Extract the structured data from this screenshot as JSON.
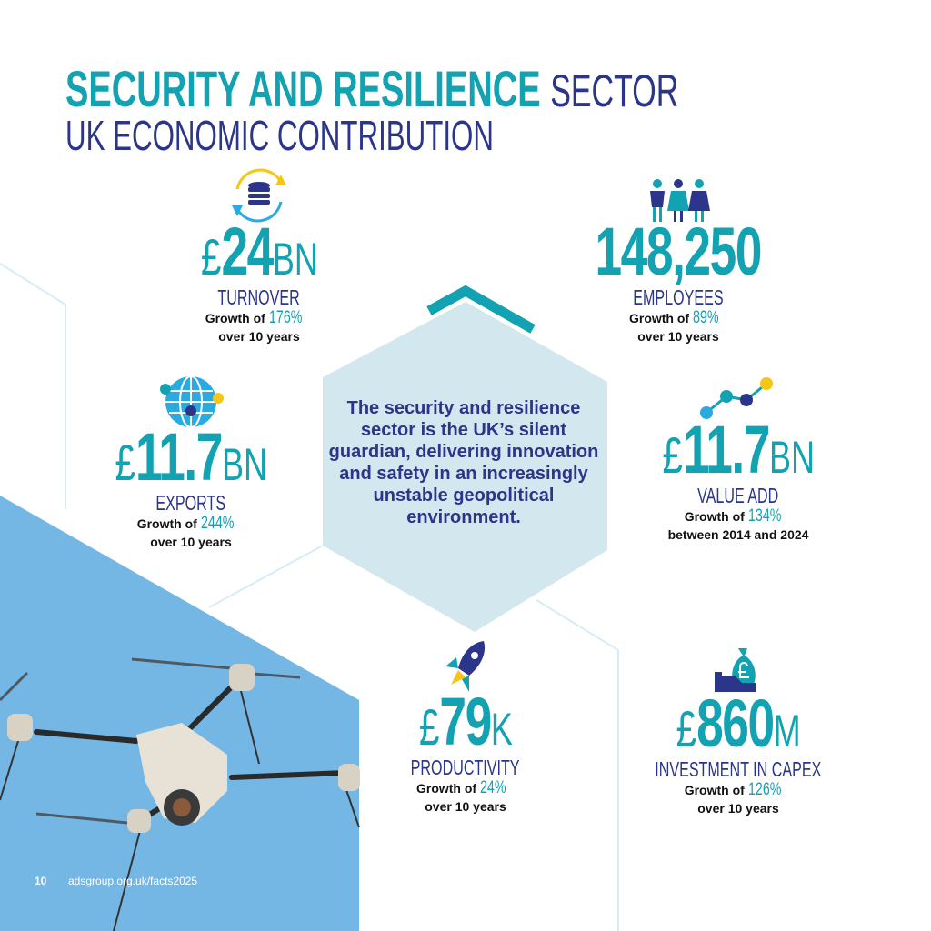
{
  "title": {
    "highlight": "SECURITY AND RESILIENCE",
    "rest": "SECTOR",
    "line2": "UK ECONOMIC CONTRIBUTION"
  },
  "center_statement": "The security and resilience sector is the UK’s silent guardian, delivering innovation and safety in an increasingly unstable geopolitical environment.",
  "stats": {
    "turnover": {
      "currency": "£",
      "value": "24",
      "unit": "BN",
      "label": "TURNOVER",
      "growth_prefix": "Growth of",
      "growth": "176%",
      "period": "over 10 years"
    },
    "employees": {
      "currency": "",
      "value": "148,250",
      "unit": "",
      "label": "EMPLOYEES",
      "growth_prefix": "Growth of",
      "growth": "89%",
      "period": "over 10 years"
    },
    "exports": {
      "currency": "£",
      "value": "11.7",
      "unit": "BN",
      "label": "EXPORTS",
      "growth_prefix": "Growth of",
      "growth": "244%",
      "period": "over 10 years"
    },
    "value_add": {
      "currency": "£",
      "value": "11.7",
      "unit": "BN",
      "label": "VALUE ADD",
      "growth_prefix": "Growth of",
      "growth": "134%",
      "period": "between 2014 and 2024"
    },
    "productivity": {
      "currency": "£",
      "value": "79",
      "unit": "K",
      "label": "PRODUCTIVITY",
      "growth_prefix": "Growth of",
      "growth": "24%",
      "period": "over 10 years"
    },
    "capex": {
      "currency": "£",
      "value": "860",
      "unit": "M",
      "label": "INVESTMENT IN CAPEX",
      "growth_prefix": "Growth of",
      "growth": "126%",
      "period": "over 10 years"
    }
  },
  "footer": {
    "page_number": "10",
    "url": "adsgroup.org.uk/facts2025"
  },
  "colors": {
    "teal": "#13a2b2",
    "navy": "#2b3589",
    "hex_fill": "#d3e7ee",
    "sky": "#74b6e4",
    "yellow": "#f5c518"
  }
}
